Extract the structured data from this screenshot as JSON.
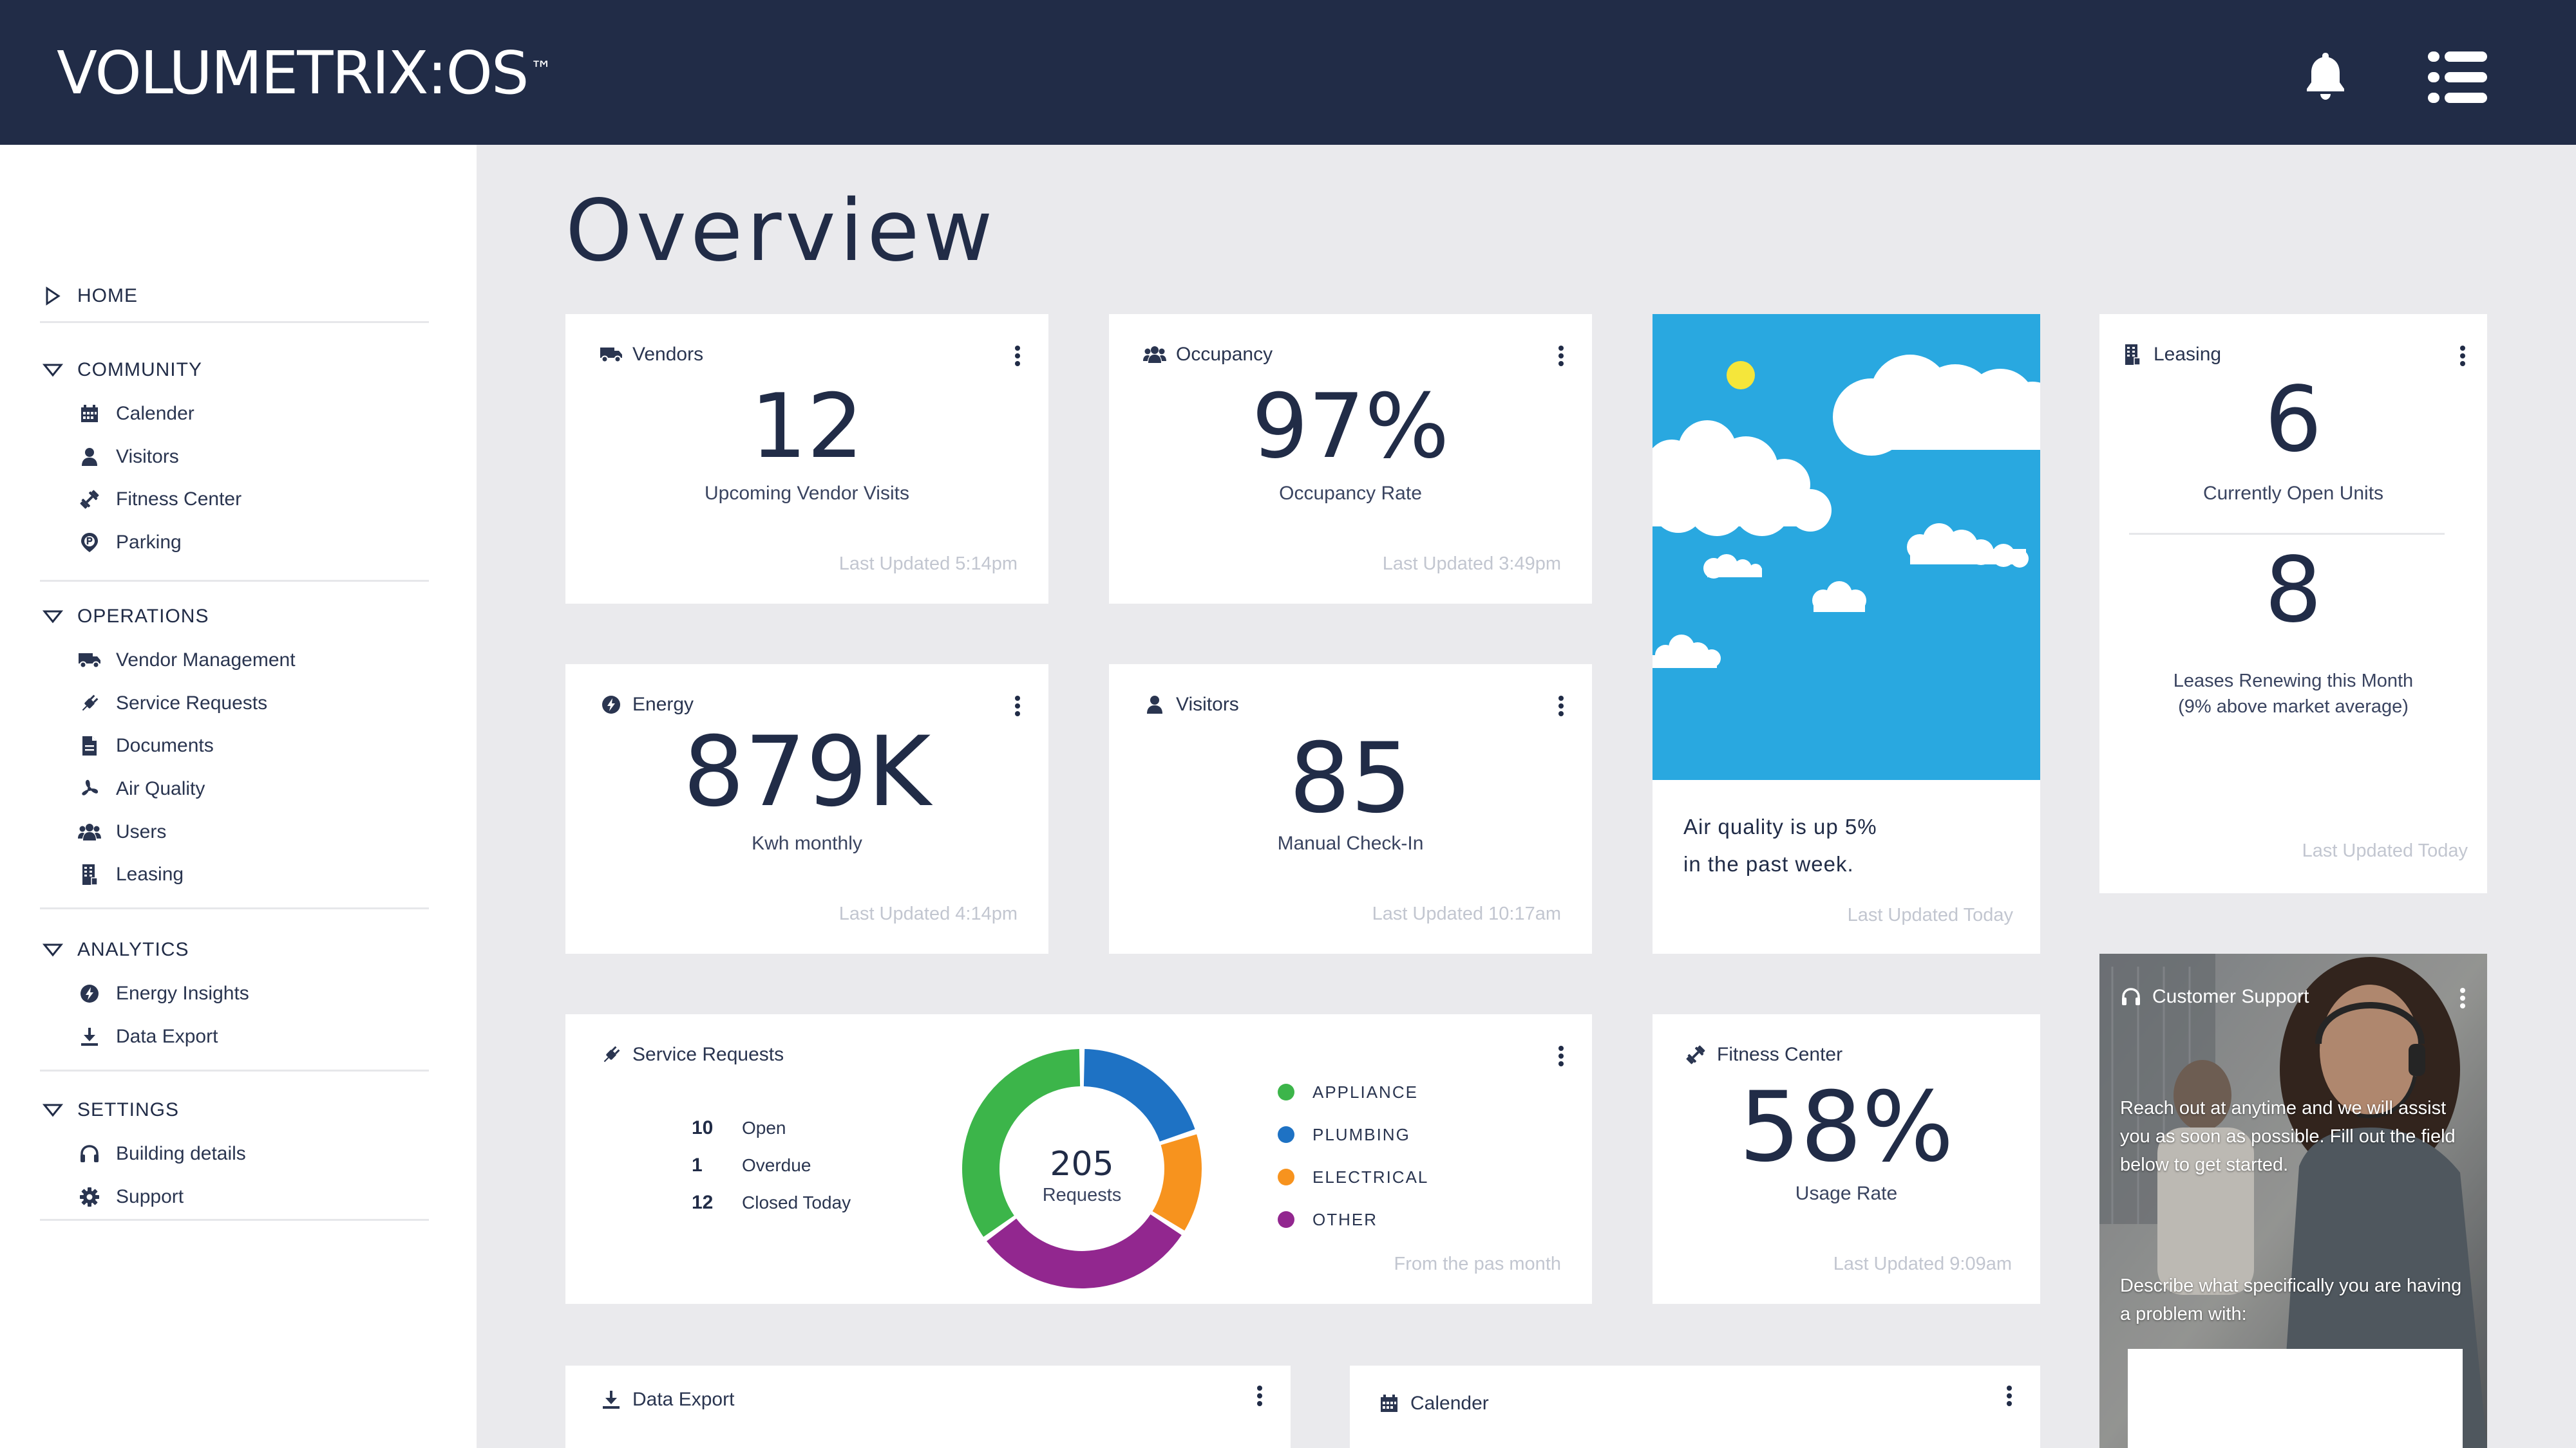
{
  "header": {
    "logo_text": "VOLUMETRIX:OS",
    "logo_mark": "™",
    "bell_icon": "bell-icon",
    "menu_icon": "list-menu-icon",
    "bg_color": "#212c47"
  },
  "sidebar": {
    "home": {
      "label": "HOME"
    },
    "sections": [
      {
        "label": "COMMUNITY",
        "items": [
          {
            "label": "Calender",
            "icon": "calendar-icon"
          },
          {
            "label": "Visitors",
            "icon": "user-icon"
          },
          {
            "label": "Fitness Center",
            "icon": "dumbbell-icon"
          },
          {
            "label": "Parking",
            "icon": "parking-icon"
          }
        ]
      },
      {
        "label": "OPERATIONS",
        "items": [
          {
            "label": "Vendor Management",
            "icon": "truck-icon"
          },
          {
            "label": "Service Requests",
            "icon": "plug-icon"
          },
          {
            "label": "Documents",
            "icon": "document-icon"
          },
          {
            "label": "Air Quality",
            "icon": "fan-icon"
          },
          {
            "label": "Users",
            "icon": "users-icon"
          },
          {
            "label": "Leasing",
            "icon": "building-icon"
          }
        ]
      },
      {
        "label": "ANALYTICS",
        "items": [
          {
            "label": "Energy Insights",
            "icon": "bolt-icon"
          },
          {
            "label": "Data Export",
            "icon": "download-icon"
          }
        ]
      },
      {
        "label": "SETTINGS",
        "items": [
          {
            "label": "Building details",
            "icon": "headset-icon"
          },
          {
            "label": "Support",
            "icon": "gear-icon"
          }
        ]
      }
    ]
  },
  "main": {
    "title": "Overview",
    "vendors": {
      "title": "Vendors",
      "value": "12",
      "label": "Upcoming Vendor Visits",
      "updated": "Last Updated 5:14pm"
    },
    "occupancy": {
      "title": "Occupancy",
      "value": "97%",
      "label": "Occupancy Rate",
      "updated": "Last Updated 3:49pm"
    },
    "air_quality": {
      "line1": "Air quality is up 5%",
      "line2": "in the past week.",
      "updated": "Last Updated Today",
      "sky_color": "#29a8e0",
      "sun_color": "#f5e63a"
    },
    "leasing": {
      "title": "Leasing",
      "value1": "6",
      "label1": "Currently Open Units",
      "value2": "8",
      "label2_line1": "Leases Renewing this Month",
      "label2_line2": "(9% above market average)",
      "updated": "Last Updated Today"
    },
    "energy": {
      "title": "Energy",
      "value": "879K",
      "label": "Kwh monthly",
      "updated": "Last Updated 4:14pm"
    },
    "visitors": {
      "title": "Visitors",
      "value": "85",
      "label": "Manual Check-In",
      "updated": "Last Updated 10:17am"
    },
    "service_requests": {
      "title": "Service Requests",
      "stats": [
        {
          "n": "10",
          "label": "Open"
        },
        {
          "n": "1",
          "label": "Overdue"
        },
        {
          "n": "12",
          "label": "Closed Today"
        }
      ],
      "total": "205",
      "total_label": "Requests",
      "footer": "From the pas month"
    },
    "fitness": {
      "title": "Fitness Center",
      "value": "58%",
      "label": "Usage Rate",
      "updated": "Last Updated 9:09am"
    },
    "support": {
      "title": "Customer Support",
      "text1": "Reach out at anytime and we will assist you as soon as possible. Fill out the field below to get started.",
      "text2": "Describe what specifically you are having a problem with:"
    },
    "data_export": {
      "title": "Data Export"
    },
    "calendar": {
      "title": "Calender"
    }
  },
  "chart_data": {
    "type": "pie",
    "categories": [
      "APPLIANCE",
      "PLUMBING",
      "ELECTRICAL",
      "OTHER"
    ],
    "values": [
      35,
      20,
      14,
      31
    ],
    "colors": [
      "#3cb54a",
      "#1e72c4",
      "#f7931e",
      "#92278f"
    ],
    "center_value": "205",
    "center_label": "Requests"
  }
}
